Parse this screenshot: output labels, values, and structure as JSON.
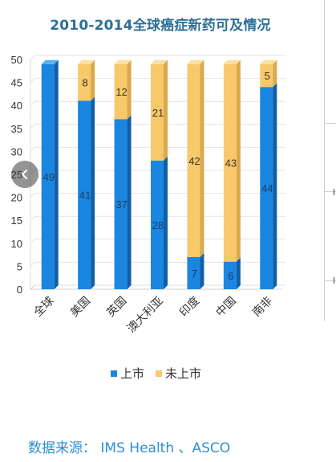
{
  "chart_data": {
    "type": "bar",
    "stacked": true,
    "title": "2010-2014全球癌症新药可及情况",
    "categories": [
      "全球",
      "美国",
      "英国",
      "澳大利亚",
      "印度",
      "中国",
      "南非"
    ],
    "series": [
      {
        "name": "上市",
        "color": "#1a86e0",
        "values": [
          49,
          41,
          37,
          28,
          7,
          6,
          44
        ]
      },
      {
        "name": "未上市",
        "color": "#f7c96b",
        "values": [
          0,
          8,
          12,
          21,
          42,
          43,
          5
        ]
      }
    ],
    "ylim": [
      0,
      50
    ],
    "yticks": [
      0,
      5,
      10,
      15,
      20,
      25,
      30,
      35,
      40,
      45,
      50
    ],
    "grid": true,
    "legend_position": "bottom"
  },
  "source_text": "数据来源： IMS Health 、ASCO",
  "icons": {
    "nav_left": "chevron-left-icon"
  }
}
